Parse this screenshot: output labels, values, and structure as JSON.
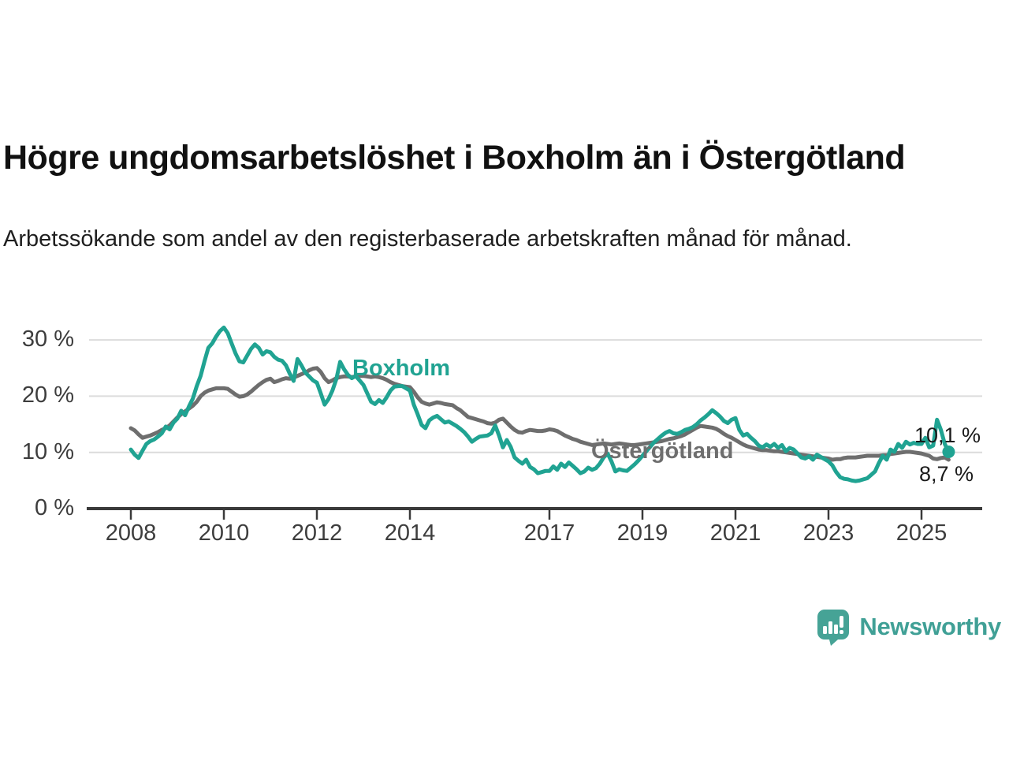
{
  "title": "Högre ungdomsarbetslöshet i Boxholm än i Östergötland",
  "subtitle": "Arbetssökande som andel av den registerbaserade arbetskraften månad för månad.",
  "branding": {
    "logo_text": "Newsworthy",
    "logo_icon": "bar-chart-speech-bubble-icon"
  },
  "colors": {
    "boxholm": "#20a392",
    "ostergotland": "#6e6e6e",
    "axis": "#3a3a3a",
    "gridline": "#dcdcdc",
    "tick_label": "#3d3d3d",
    "value_label": "#1a1a1a",
    "logo": "#46a396",
    "background": "#ffffff"
  },
  "chart_data": {
    "type": "line",
    "title": "Högre ungdomsarbetslöshet i Boxholm än i Östergötland",
    "subtitle": "Arbetssökande som andel av den registerbaserade arbetskraften månad för månad.",
    "unit": "%",
    "x_start_year": 2008,
    "x_step_months": 1,
    "x_end_label_value_boxholm": "10,1 %",
    "x_end_label_value_ostergotland": "8,7 %",
    "ylim": [
      0,
      34
    ],
    "grid": "horizontal",
    "legend_position": "inline-labels",
    "x_ticks": [
      {
        "year": 2008,
        "label": "2008"
      },
      {
        "year": 2010,
        "label": "2010"
      },
      {
        "year": 2012,
        "label": "2012"
      },
      {
        "year": 2014,
        "label": "2014"
      },
      {
        "year": 2017,
        "label": "2017"
      },
      {
        "year": 2019,
        "label": "2019"
      },
      {
        "year": 2021,
        "label": "2021"
      },
      {
        "year": 2023,
        "label": "2023"
      },
      {
        "year": 2025,
        "label": "2025"
      }
    ],
    "y_ticks": [
      {
        "value": 0,
        "label": "0 %"
      },
      {
        "value": 10,
        "label": "10 %"
      },
      {
        "value": 20,
        "label": "20 %"
      },
      {
        "value": 30,
        "label": "30 %"
      }
    ],
    "series": [
      {
        "name": "Boxholm",
        "color": "#20a392",
        "end_label": "10,1 %",
        "end_dot": true,
        "values": [
          10.5,
          9.6,
          9.0,
          10.3,
          11.5,
          12.0,
          12.3,
          12.8,
          13.4,
          14.6,
          14.1,
          15.3,
          16.0,
          17.4,
          16.6,
          18.2,
          19.6,
          21.8,
          23.6,
          26.2,
          28.6,
          29.4,
          30.6,
          31.6,
          32.2,
          31.2,
          29.4,
          27.6,
          26.2,
          26.0,
          27.2,
          28.4,
          29.2,
          28.6,
          27.4,
          28.0,
          27.8,
          27.0,
          26.5,
          26.3,
          25.5,
          24.0,
          22.7,
          26.6,
          25.5,
          24.2,
          23.5,
          22.8,
          22.4,
          20.5,
          18.5,
          19.5,
          21.0,
          23.0,
          26.1,
          24.8,
          23.8,
          23.2,
          23.6,
          22.8,
          22.0,
          20.5,
          19.0,
          18.6,
          19.3,
          18.8,
          19.8,
          21.0,
          21.7,
          21.8,
          21.8,
          21.4,
          21.0,
          18.5,
          16.8,
          14.9,
          14.3,
          15.7,
          16.2,
          16.5,
          15.9,
          15.3,
          15.5,
          15.1,
          14.7,
          14.2,
          13.6,
          12.8,
          11.9,
          12.4,
          12.8,
          12.9,
          13.0,
          13.4,
          14.8,
          13.0,
          10.9,
          12.2,
          11.0,
          9.1,
          8.5,
          8.0,
          8.7,
          7.4,
          7.0,
          6.3,
          6.5,
          6.7,
          6.7,
          7.5,
          6.9,
          8.0,
          7.4,
          8.2,
          7.6,
          7.0,
          6.3,
          6.6,
          7.3,
          6.9,
          7.2,
          8.0,
          9.1,
          9.8,
          8.4,
          6.6,
          7.0,
          6.8,
          6.7,
          7.3,
          7.9,
          8.6,
          9.4,
          10.2,
          11.0,
          11.8,
          12.4,
          13.0,
          13.5,
          13.8,
          13.4,
          13.3,
          13.6,
          14.0,
          14.2,
          14.5,
          15.0,
          15.7,
          16.2,
          16.8,
          17.5,
          17.0,
          16.4,
          15.6,
          15.2,
          15.8,
          16.1,
          14.0,
          13.0,
          13.3,
          12.6,
          12.0,
          11.2,
          10.9,
          11.4,
          11.0,
          11.5,
          10.8,
          11.3,
          10.2,
          10.8,
          10.5,
          9.8,
          9.1,
          8.9,
          9.3,
          8.7,
          9.6,
          9.2,
          8.8,
          8.4,
          7.7,
          6.5,
          5.6,
          5.3,
          5.2,
          5.0,
          4.9,
          5.0,
          5.2,
          5.4,
          6.0,
          6.6,
          8.1,
          9.4,
          8.7,
          10.5,
          10.1,
          11.5,
          10.8,
          11.9,
          11.4,
          11.7,
          11.5,
          11.5,
          12.6,
          10.9,
          11.2,
          15.8,
          14.0,
          11.5,
          10.1
        ]
      },
      {
        "name": "Östergötland",
        "color": "#6e6e6e",
        "end_label": "8,7 %",
        "end_dot": false,
        "values": [
          14.3,
          13.9,
          13.2,
          12.6,
          12.8,
          13.0,
          13.3,
          13.6,
          14.0,
          14.3,
          14.8,
          15.5,
          16.2,
          16.8,
          17.3,
          17.8,
          18.3,
          19.0,
          20.0,
          20.6,
          21.0,
          21.2,
          21.4,
          21.4,
          21.4,
          21.3,
          20.8,
          20.3,
          19.9,
          20.0,
          20.3,
          20.8,
          21.4,
          22.0,
          22.5,
          22.9,
          23.1,
          22.5,
          22.7,
          23.0,
          23.2,
          23.1,
          23.3,
          23.6,
          23.9,
          24.2,
          24.6,
          24.9,
          25.0,
          24.3,
          23.2,
          22.5,
          22.8,
          23.2,
          23.4,
          23.5,
          23.5,
          23.4,
          23.5,
          23.6,
          23.6,
          23.5,
          23.4,
          23.5,
          23.4,
          23.2,
          22.9,
          22.5,
          22.2,
          22.0,
          21.8,
          21.7,
          21.6,
          20.8,
          19.8,
          19.0,
          18.7,
          18.5,
          18.7,
          18.9,
          18.8,
          18.6,
          18.5,
          18.4,
          17.9,
          17.5,
          16.9,
          16.3,
          16.1,
          15.9,
          15.7,
          15.5,
          15.2,
          15.1,
          15.3,
          15.8,
          16.0,
          15.3,
          14.6,
          14.0,
          13.6,
          13.5,
          13.8,
          14.0,
          13.9,
          13.8,
          13.8,
          13.9,
          14.1,
          14.0,
          13.8,
          13.4,
          13.0,
          12.7,
          12.4,
          12.2,
          11.9,
          11.7,
          11.5,
          11.3,
          11.4,
          11.5,
          11.6,
          11.5,
          11.4,
          11.5,
          11.6,
          11.5,
          11.4,
          11.3,
          11.3,
          11.4,
          11.5,
          11.6,
          11.7,
          11.8,
          11.9,
          12.0,
          12.2,
          12.4,
          12.5,
          12.7,
          12.9,
          13.2,
          13.6,
          14.0,
          14.4,
          14.7,
          14.6,
          14.5,
          14.4,
          14.2,
          13.8,
          13.3,
          12.9,
          12.6,
          12.2,
          11.8,
          11.4,
          11.1,
          10.9,
          10.7,
          10.5,
          10.4,
          10.4,
          10.3,
          10.2,
          10.2,
          10.1,
          10.0,
          9.9,
          9.8,
          9.7,
          9.6,
          9.5,
          9.4,
          9.3,
          9.2,
          9.1,
          9.0,
          8.9,
          8.7,
          8.8,
          8.8,
          9.0,
          9.1,
          9.1,
          9.1,
          9.2,
          9.3,
          9.4,
          9.4,
          9.4,
          9.4,
          9.5,
          9.5,
          9.7,
          9.8,
          9.9,
          10.0,
          10.1,
          10.1,
          10.0,
          9.9,
          9.8,
          9.6,
          9.4,
          8.9,
          8.8,
          9.0,
          9.1,
          8.7
        ]
      }
    ]
  }
}
